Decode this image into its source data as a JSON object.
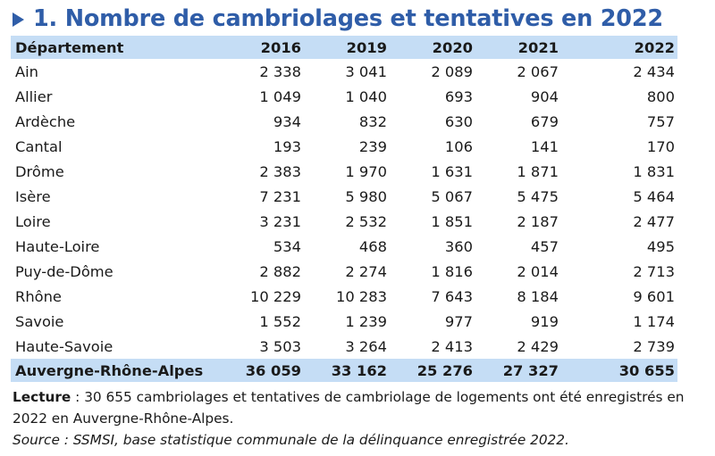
{
  "title": "1. Nombre de cambriolages et tentatives en 2022",
  "accent_color": "#2f5da8",
  "header_bg_color": "#c5ddf5",
  "chart_data": {
    "type": "table",
    "title": "1. Nombre de cambriolages et tentatives en 2022",
    "columns": [
      "Département",
      "2016",
      "2019",
      "2020",
      "2021",
      "2022"
    ],
    "rows": [
      [
        "Ain",
        "2 338",
        "3 041",
        "2 089",
        "2 067",
        "2 434"
      ],
      [
        "Allier",
        "1 049",
        "1 040",
        "693",
        "904",
        "800"
      ],
      [
        "Ardèche",
        "934",
        "832",
        "630",
        "679",
        "757"
      ],
      [
        "Cantal",
        "193",
        "239",
        "106",
        "141",
        "170"
      ],
      [
        "Drôme",
        "2 383",
        "1 970",
        "1 631",
        "1 871",
        "1 831"
      ],
      [
        "Isère",
        "7 231",
        "5 980",
        "5 067",
        "5 475",
        "5 464"
      ],
      [
        "Loire",
        "3 231",
        "2 532",
        "1 851",
        "2 187",
        "2 477"
      ],
      [
        "Haute-Loire",
        "534",
        "468",
        "360",
        "457",
        "495"
      ],
      [
        "Puy-de-Dôme",
        "2 882",
        "2 274",
        "1 816",
        "2 014",
        "2 713"
      ],
      [
        "Rhône",
        "10 229",
        "10 283",
        "7 643",
        "8 184",
        "9 601"
      ],
      [
        "Savoie",
        "1 552",
        "1 239",
        "977",
        "919",
        "1 174"
      ],
      [
        "Haute-Savoie",
        "3 503",
        "3 264",
        "2 413",
        "2 429",
        "2 739"
      ]
    ],
    "total": [
      "Auvergne-Rhône-Alpes",
      "36 059",
      "33 162",
      "25 276",
      "27 327",
      "30 655"
    ]
  },
  "notes": {
    "lecture_label": "Lecture",
    "lecture_text": " : 30 655 cambriolages et tentatives de cambriolage de logements ont été enregistrés en 2022 en Auvergne-Rhône-Alpes.",
    "source_text": "Source :  SSMSI, base statistique communale de la délinquance enregistrée 2022."
  }
}
